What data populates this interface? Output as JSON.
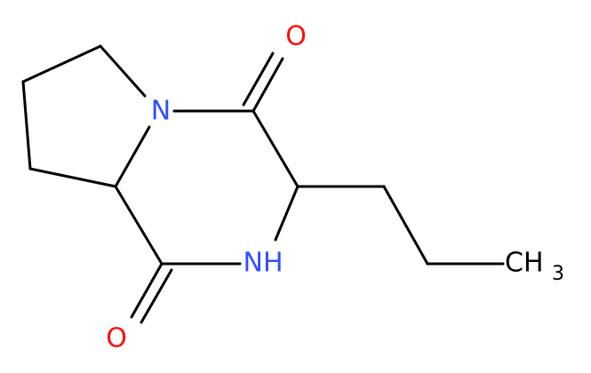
{
  "atoms": [
    {
      "label": "N"
    },
    {
      "label": "O"
    },
    {
      "label": "O"
    },
    {
      "label": "NH"
    },
    {
      "label": "CH",
      "subscript": "3"
    }
  ]
}
